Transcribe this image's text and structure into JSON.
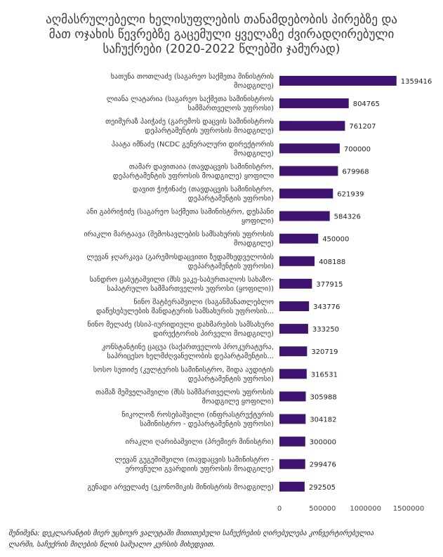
{
  "title_lines": [
    "აღმასრულებელი ხელისუფლების თანამდებობის პირებზე და",
    "მათ ოჯახის წევრებზე გაცემული ყველაზე ძვირადღირებული",
    "საჩუქრები (2020-2022 წლებში ჯამურად)"
  ],
  "note_lines": [
    "შენიშვნა: დეკლარანტის მიერ უცხოურ ვალუტაში მითითებული საჩუქრების ღირებულება კონვერტირებულია",
    "ლარში, საჩუქრის მიღების წლის საშუალო კურსის მიხედვით."
  ],
  "chart_data": {
    "type": "bar",
    "orientation": "horizontal",
    "xlim": [
      0,
      1500000
    ],
    "xticks": [
      "0",
      "500000",
      "1000000",
      "1500000"
    ],
    "bar_color": "#3f1470",
    "grid": false,
    "categories": [
      [
        "ხათუნა თოთლაძე (საგარეო საქმეთა მინისტრის",
        "მოადგილე)"
      ],
      [
        "ლიანა ლატარია (საგარეო საქმეთა სამინისტროს",
        "სამმართველოს უფროსი)"
      ],
      [
        "თეიმურაზ პაიჭაძე (გარემოს დაცვის სამინისტროს",
        "დეპარტამენტის უფროსის მოადგილე)"
      ],
      [
        "პაატა იმნაძე (NCDC გენერალური დირექტორის",
        "მოადგილე)"
      ],
      [
        "თამარ დავითაია (თავდაცვის სამინისტრო,",
        "დეპარტამენტის უფროსის მოადგილე) ყოფილი"
      ],
      [
        "დავით ჭიჭინაძე (თავდაცვის სამინისტრო,",
        "დეპარტამენტის უფროსი)"
      ],
      [
        "ანი გაბრიჭიძე (საგარეო საქმეთა სამინისტრო, დესპანი",
        "ყოფილი)"
      ],
      [
        "ირაკლი მარტაავა (შემოსავლების სამსახურის უფროსის",
        "მოადგილე)"
      ],
      [
        "ლევან ჯღარკავა (გარემოსდაცვითი ზედამხედველობის",
        "დეპარტამენტის უფროსი)"
      ],
      [
        "სანდრო ცაბუტაშვილი (შსს ვაკე-საბურთალოს სახაზო-",
        "საპატრულო სამმართველოს უფროსი (ყოფილი))"
      ],
      [
        "ნინო შატბერაშვილი (საგანმანათლებლო",
        "დაწესებულების მანდატურის სამსახურის უფროსის..."
      ],
      [
        "ნინო მელაძე (სსიპ-იურიდიული დახმარების სამსახური",
        "დირექტორის პირველი მოადგილე)"
      ],
      [
        "კონსტანტინე ცაცუა (საქართველოს პროკურატურა,",
        "საპრიცესო ხელმძღვანელობის დეპარტამენტის..."
      ],
      [
        "სოსო სუთიძე (კულტურის სამინისტრო, შიდა აუდიტის",
        "დეპარტამენტის უფროსი)"
      ],
      [
        "თამაზ მეშველაშვილი (შსს სამმართველოს უფროსის",
        "მოადგილე ყოფილი)"
      ],
      [
        "ნიკოლოზ როსებაშვილი (ინფრასტრუქტურის",
        "სამინისტრო - დეპარტამენტის უფროსი)"
      ],
      [
        "ირაკლი ღარიბაშვილი (პრემიერ მინისტრი)"
      ],
      [
        "ლევან გუგეშიშვილი (თავდაცვის სამინისტრო -",
        "ეროვნული გვარდიის უფროსის მოადგილე)"
      ],
      [
        "გენადი არველაძე (ეკონომიკის მინისტრის მოადგილე)"
      ]
    ],
    "values": [
      1359416,
      804765,
      761207,
      700000,
      679968,
      621939,
      584326,
      450000,
      408188,
      377915,
      343776,
      333250,
      320719,
      316531,
      305988,
      304182,
      300000,
      299476,
      292505
    ]
  }
}
